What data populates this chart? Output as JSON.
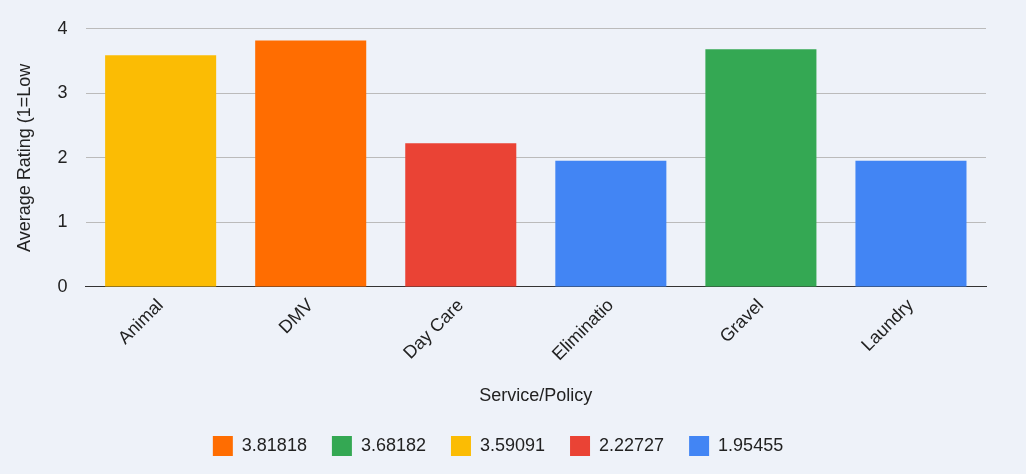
{
  "chart_data": {
    "type": "bar",
    "xlabel": "Service/Policy",
    "ylabel": "Average Rating (1=Low",
    "categories": [
      "Animal",
      "DMV",
      "Day Care",
      "Eliminatio",
      "Gravel",
      "Laundry"
    ],
    "series": [
      {
        "name": "3.81818",
        "color": "#ff6d01",
        "values": [
          null,
          3.81818,
          null,
          null,
          null,
          null
        ]
      },
      {
        "name": "3.68182",
        "color": "#34a853",
        "values": [
          null,
          null,
          null,
          null,
          3.68182,
          null
        ]
      },
      {
        "name": "3.59091",
        "color": "#fbbc04",
        "values": [
          3.59091,
          null,
          null,
          null,
          null,
          null
        ]
      },
      {
        "name": "2.22727",
        "color": "#ea4335",
        "values": [
          null,
          null,
          2.22727,
          null,
          null,
          null
        ]
      },
      {
        "name": "1.95455",
        "color": "#4285f4",
        "values": [
          null,
          null,
          null,
          1.95455,
          null,
          1.95455
        ]
      }
    ],
    "ylim": [
      0,
      4
    ],
    "yticks": [
      0,
      1,
      2,
      3,
      4
    ],
    "grid": "y",
    "legend": "bottom"
  }
}
